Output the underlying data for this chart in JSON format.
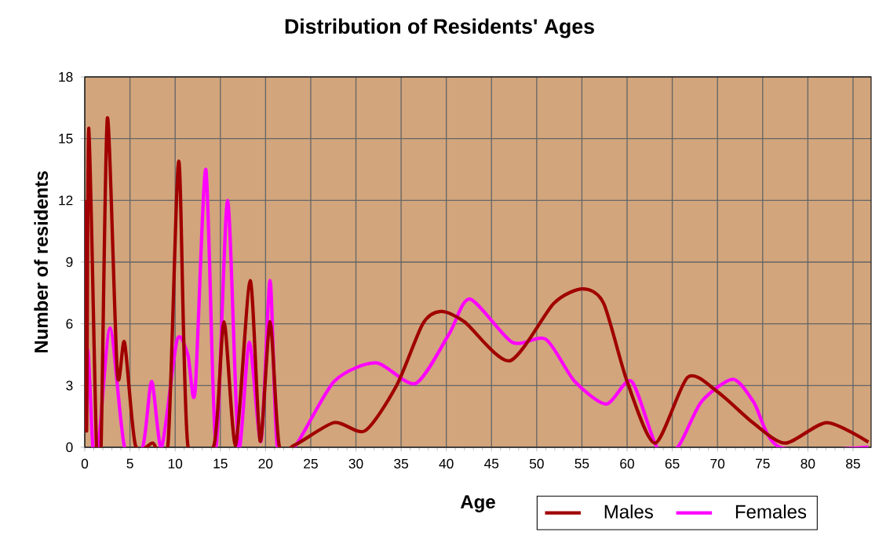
{
  "chart_data": {
    "type": "line",
    "title": "Distribution of Residents' Ages",
    "xlabel": "Age",
    "ylabel": "Number of residents",
    "xlim": [
      0,
      87
    ],
    "ylim": [
      0,
      18
    ],
    "xticks": [
      0,
      5,
      10,
      15,
      20,
      25,
      30,
      35,
      40,
      45,
      50,
      55,
      60,
      65,
      70,
      75,
      80,
      85
    ],
    "yticks": [
      0,
      3,
      6,
      9,
      12,
      15,
      18
    ],
    "grid": true,
    "legend": "bottom right",
    "marker": "none",
    "line_style": "solid",
    "series": [
      {
        "name": "Males",
        "color": "#a00000",
        "x": [
          0,
          0.2,
          0.45,
          1.3,
          1.8,
          2.5,
          3.6,
          4.4,
          5.6,
          7.5,
          9.2,
          10.4,
          11.4,
          14.3,
          15.4,
          16.7,
          18.3,
          19.4,
          20.5,
          21.5,
          23.2,
          27.6,
          31,
          34.5,
          37.4,
          39.4,
          42,
          47,
          51.9,
          55.1,
          57.4,
          60,
          63.1,
          66.7,
          70,
          73.9,
          77.5,
          82.1,
          86.7
        ],
        "values": [
          12,
          0.8,
          15.5,
          0,
          0,
          16,
          3.6,
          5.1,
          0.1,
          0.2,
          0.1,
          13.9,
          0.1,
          0.1,
          6.1,
          0.1,
          8.1,
          0.3,
          6.1,
          0.1,
          0.1,
          1.2,
          0.8,
          3,
          6,
          6.6,
          6.1,
          4.2,
          7,
          7.7,
          7,
          3.2,
          0.2,
          3.4,
          2.7,
          1.2,
          0.2,
          1.2,
          0.25
        ]
      },
      {
        "name": "Females",
        "color": "#ff00ff",
        "x": [
          0,
          0.35,
          0.9,
          1.5,
          2.8,
          4.4,
          6.4,
          7.4,
          8.5,
          10.2,
          11.4,
          12.2,
          13.4,
          14.5,
          15.8,
          17,
          18.2,
          19.5,
          20.5,
          21.3,
          23.2,
          27.6,
          32.2,
          36.6,
          40.3,
          42.6,
          47.3,
          51,
          54.2,
          57.7,
          60.5,
          63.3,
          65.6,
          68.2,
          71.7,
          74,
          76.9,
          86.7
        ],
        "values": [
          0.9,
          4.7,
          0,
          0,
          5.8,
          0,
          0,
          3.2,
          0,
          5.2,
          4.5,
          2.7,
          13.5,
          0,
          12,
          0,
          5.1,
          0.3,
          8.1,
          0,
          0,
          3.2,
          4.1,
          3.1,
          5.5,
          7.2,
          5.1,
          5.25,
          3.2,
          2.1,
          3.2,
          0,
          0,
          2.2,
          3.3,
          2.2,
          0,
          0
        ]
      }
    ]
  }
}
